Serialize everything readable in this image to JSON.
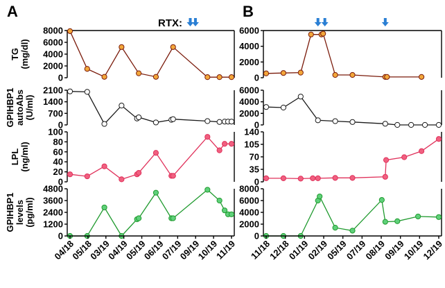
{
  "panel_letters": [
    "A",
    "B"
  ],
  "rtx_label": "RTX:",
  "colors": {
    "TG": {
      "line": "#7a1a0a",
      "fill": "#f2a73b"
    },
    "GPIHBP1_autoAbs": {
      "line": "#1a1a1a",
      "fill": "#ffffff"
    },
    "LPL": {
      "line": "#e0305a",
      "fill": "#f06080"
    },
    "GPIHBP1_levels": {
      "line": "#1f9a2e",
      "fill": "#5fd07a"
    },
    "arrow": "#2a7fd4"
  },
  "y_labels": {
    "TG": [
      "TG",
      "(mg/dl)"
    ],
    "GPIHBP1_autoAbs": [
      "GPIHBP1",
      "autoAbs",
      "(U/ml)"
    ],
    "LPL": [
      "LPL",
      "(ng/ml)"
    ],
    "GPIHBP1_levels": [
      "GPIHBP1",
      "levels",
      "(pg/ml)"
    ]
  },
  "chart_data": [
    {
      "panel": "A",
      "type": "line",
      "x_ticks": [
        "04/18",
        "05/18",
        "03/19",
        "04/19",
        "05/19",
        "06/19",
        "07/19",
        "09/19",
        "10/19",
        "11/19"
      ],
      "rtx_arrows_x": [
        7.0,
        7.3
      ],
      "series": [
        {
          "name": "TG",
          "ylim": [
            0,
            8000
          ],
          "yticks": [
            "0",
            "2000",
            "4000",
            "6000",
            "8000"
          ],
          "x": [
            0,
            1,
            2,
            3,
            4,
            5,
            6,
            8,
            8.7,
            9.4
          ],
          "values": [
            7900,
            1500,
            150,
            5200,
            750,
            150,
            5200,
            100,
            100,
            100
          ]
        },
        {
          "name": "GPIHBP1_autoAbs",
          "ylim": [
            0,
            2100
          ],
          "yticks": [
            "0",
            "700",
            "1400",
            "2100"
          ],
          "x": [
            0,
            1,
            2,
            3,
            3.9,
            4,
            5,
            5.9,
            6,
            8,
            8.7,
            9.0,
            9.2,
            9.4
          ],
          "values": [
            2030,
            2000,
            60,
            1170,
            390,
            460,
            150,
            310,
            350,
            230,
            180,
            200,
            200,
            200
          ]
        },
        {
          "name": "LPL",
          "ylim": [
            0,
            100
          ],
          "yticks": [
            "0",
            "20",
            "40",
            "60",
            "80",
            "100"
          ],
          "x": [
            0,
            1,
            2,
            3,
            3.9,
            4,
            5,
            5.9,
            6,
            8,
            8.7,
            9.0,
            9.4
          ],
          "values": [
            15,
            11,
            31,
            5,
            15,
            18,
            58,
            12,
            12,
            90,
            63,
            76,
            76
          ]
        },
        {
          "name": "GPIHBP1_levels",
          "ylim": [
            0,
            4800
          ],
          "yticks": [
            "0",
            "1200",
            "2400",
            "3600",
            "4800"
          ],
          "x": [
            0,
            1,
            2,
            3,
            3.9,
            4,
            5,
            5.9,
            6,
            8,
            8.7,
            9.0,
            9.2,
            9.4
          ],
          "values": [
            0,
            0,
            2900,
            0,
            1700,
            1800,
            4400,
            1800,
            1800,
            4700,
            3600,
            2600,
            2200,
            2200
          ]
        }
      ]
    },
    {
      "panel": "B",
      "type": "line",
      "x_ticks": [
        "11/18",
        "12/18",
        "01/19",
        "02/19",
        "05/19",
        "07/19",
        "08/19",
        "09/19",
        "10/19",
        "12/19"
      ],
      "rtx_arrows_x": [
        3.0,
        3.4,
        6.9
      ],
      "series": [
        {
          "name": "TG",
          "ylim": [
            0,
            6000
          ],
          "yticks": [
            "0",
            "2000",
            "4000",
            "6000"
          ],
          "x": [
            0,
            1,
            2,
            2.6,
            3.2,
            3.3,
            4,
            5,
            6.9,
            7.0,
            9.0
          ],
          "values": [
            550,
            600,
            650,
            5500,
            5500,
            5600,
            350,
            350,
            100,
            100,
            100
          ]
        },
        {
          "name": "GPIHBP1_autoAbs",
          "ylim": [
            0,
            6000
          ],
          "yticks": [
            "0",
            "2000",
            "4000",
            "6000"
          ],
          "x": [
            0,
            1,
            2,
            3,
            4,
            5,
            6.9,
            7.6,
            8.4,
            9.2,
            10
          ],
          "values": [
            3100,
            3000,
            4900,
            800,
            650,
            500,
            200,
            0,
            0,
            0,
            0
          ]
        },
        {
          "name": "LPL",
          "ylim": [
            0,
            140
          ],
          "yticks": [
            "0",
            "35",
            "70",
            "105",
            "140"
          ],
          "x": [
            0,
            1,
            2,
            2.7,
            3,
            4,
            5,
            6.9,
            6.95,
            8,
            9,
            10
          ],
          "values": [
            10,
            10,
            9,
            10,
            10,
            11,
            11,
            14,
            61,
            69,
            86,
            120
          ]
        },
        {
          "name": "GPIHBP1_levels",
          "ylim": [
            0,
            8000
          ],
          "yticks": [
            "0",
            "2000",
            "4000",
            "6000",
            "8000"
          ],
          "x": [
            0,
            1,
            2,
            3,
            3.1,
            4,
            5,
            6.7,
            6.9,
            7.6,
            8.8,
            10
          ],
          "values": [
            0,
            0,
            0,
            6000,
            6700,
            1400,
            900,
            6100,
            2400,
            2500,
            3300,
            3200
          ]
        }
      ]
    }
  ]
}
